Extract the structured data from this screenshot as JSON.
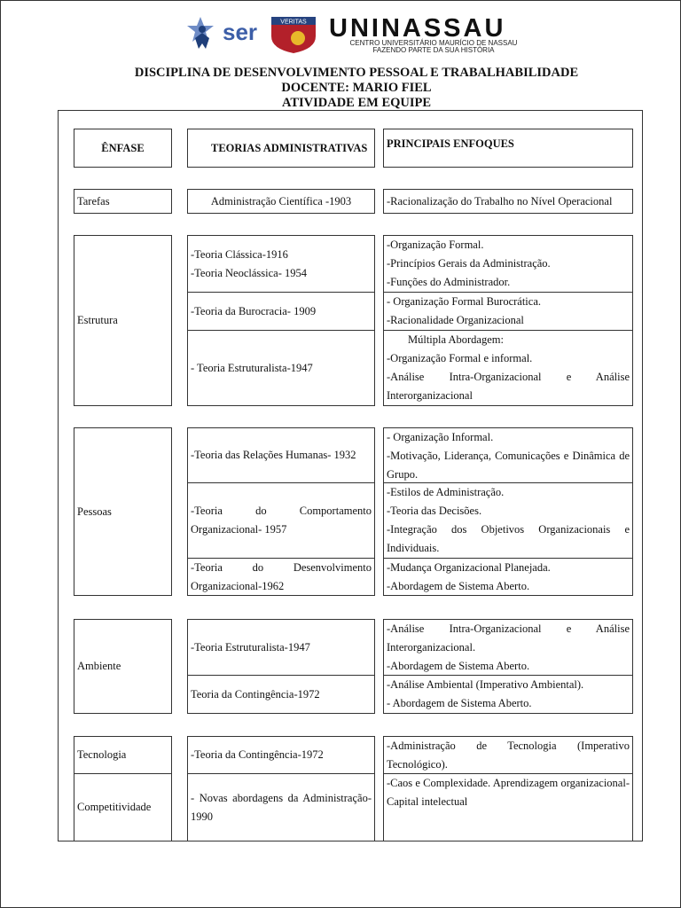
{
  "header": {
    "logo_ser": "ser",
    "logo_veritas": "VERITAS",
    "logo_name": "UNINASSAU",
    "logo_sub1": "CENTRO UNIVERSITÁRIO MAURÍCIO DE NASSAU",
    "logo_sub2": "FAZENDO PARTE DA SUA HISTÓRIA"
  },
  "titles": [
    "DISCIPLINA DE DESENVOLVIMENTO PESSOAL E TRABALHABILIDADE",
    "DOCENTE: MARIO FIEL",
    "ATIVIDADE EM EQUIPE"
  ],
  "table": {
    "columns": [
      "ÊNFASE",
      "TEORIAS ADMINISTRATIVAS",
      "PRINCIPAIS ENFOQUES"
    ],
    "groups": [
      {
        "emphasis": "Tarefas",
        "rows": [
          {
            "theory": "Administração Científica -1903",
            "focus": [
              "-Racionalização do Trabalho no Nível Operacional"
            ]
          }
        ]
      },
      {
        "emphasis": "Estrutura",
        "rows": [
          {
            "theory": [
              "-Teoria Clássica-1916",
              "-Teoria Neoclássica- 1954"
            ],
            "focus": [
              "-Organização Formal.",
              "-Princípios Gerais da Administração.",
              "-Funções do Administrador."
            ]
          },
          {
            "theory": "-Teoria da Burocracia- 1909",
            "focus": [
              "- Organização Formal Burocrática.",
              "-Racionalidade Organizacional"
            ]
          },
          {
            "theory": "- Teoria Estruturalista-1947",
            "focus": [
              "Múltipla Abordagem:",
              "-Organização Formal e informal.",
              "-Análise Intra-Organizacional e Análise Interorganizacional"
            ]
          }
        ]
      },
      {
        "emphasis": "Pessoas",
        "rows": [
          {
            "theory": "-Teoria das Relações Humanas- 1932",
            "focus": [
              "- Organização Informal.",
              "-Motivação, Liderança, Comunicações e Dinâmica de Grupo."
            ]
          },
          {
            "theory": "-Teoria do Comportamento Organizacional- 1957",
            "focus": [
              "-Estilos de Administração.",
              "-Teoria das Decisões.",
              "-Integração dos Objetivos Organizacionais e Individuais."
            ]
          },
          {
            "theory": "-Teoria do Desenvolvimento Organizacional-1962",
            "focus": [
              "-Mudança Organizacional Planejada.",
              "-Abordagem de Sistema Aberto."
            ]
          }
        ]
      },
      {
        "emphasis": "Ambiente",
        "rows": [
          {
            "theory": "-Teoria Estruturalista-1947",
            "focus": [
              "-Análise Intra-Organizacional e Análise Interorganizacional.",
              "-Abordagem de Sistema Aberto."
            ]
          },
          {
            "theory": "Teoria da Contingência-1972",
            "focus": [
              "-Análise Ambiental (Imperativo Ambiental).",
              "- Abordagem de Sistema Aberto."
            ]
          }
        ]
      },
      {
        "emphasis": "Tecnologia",
        "rows": [
          {
            "theory": "-Teoria da Contingência-1972",
            "focus": [
              "-Administração de Tecnologia (Imperativo Tecnológico)."
            ]
          }
        ]
      },
      {
        "emphasis": "Competitividade",
        "rows": [
          {
            "theory": "- Novas abordagens da Administração-1990",
            "focus": [
              "-Caos e Complexidade. Aprendizagem organizacional- Capital intelectual"
            ]
          }
        ]
      }
    ]
  }
}
